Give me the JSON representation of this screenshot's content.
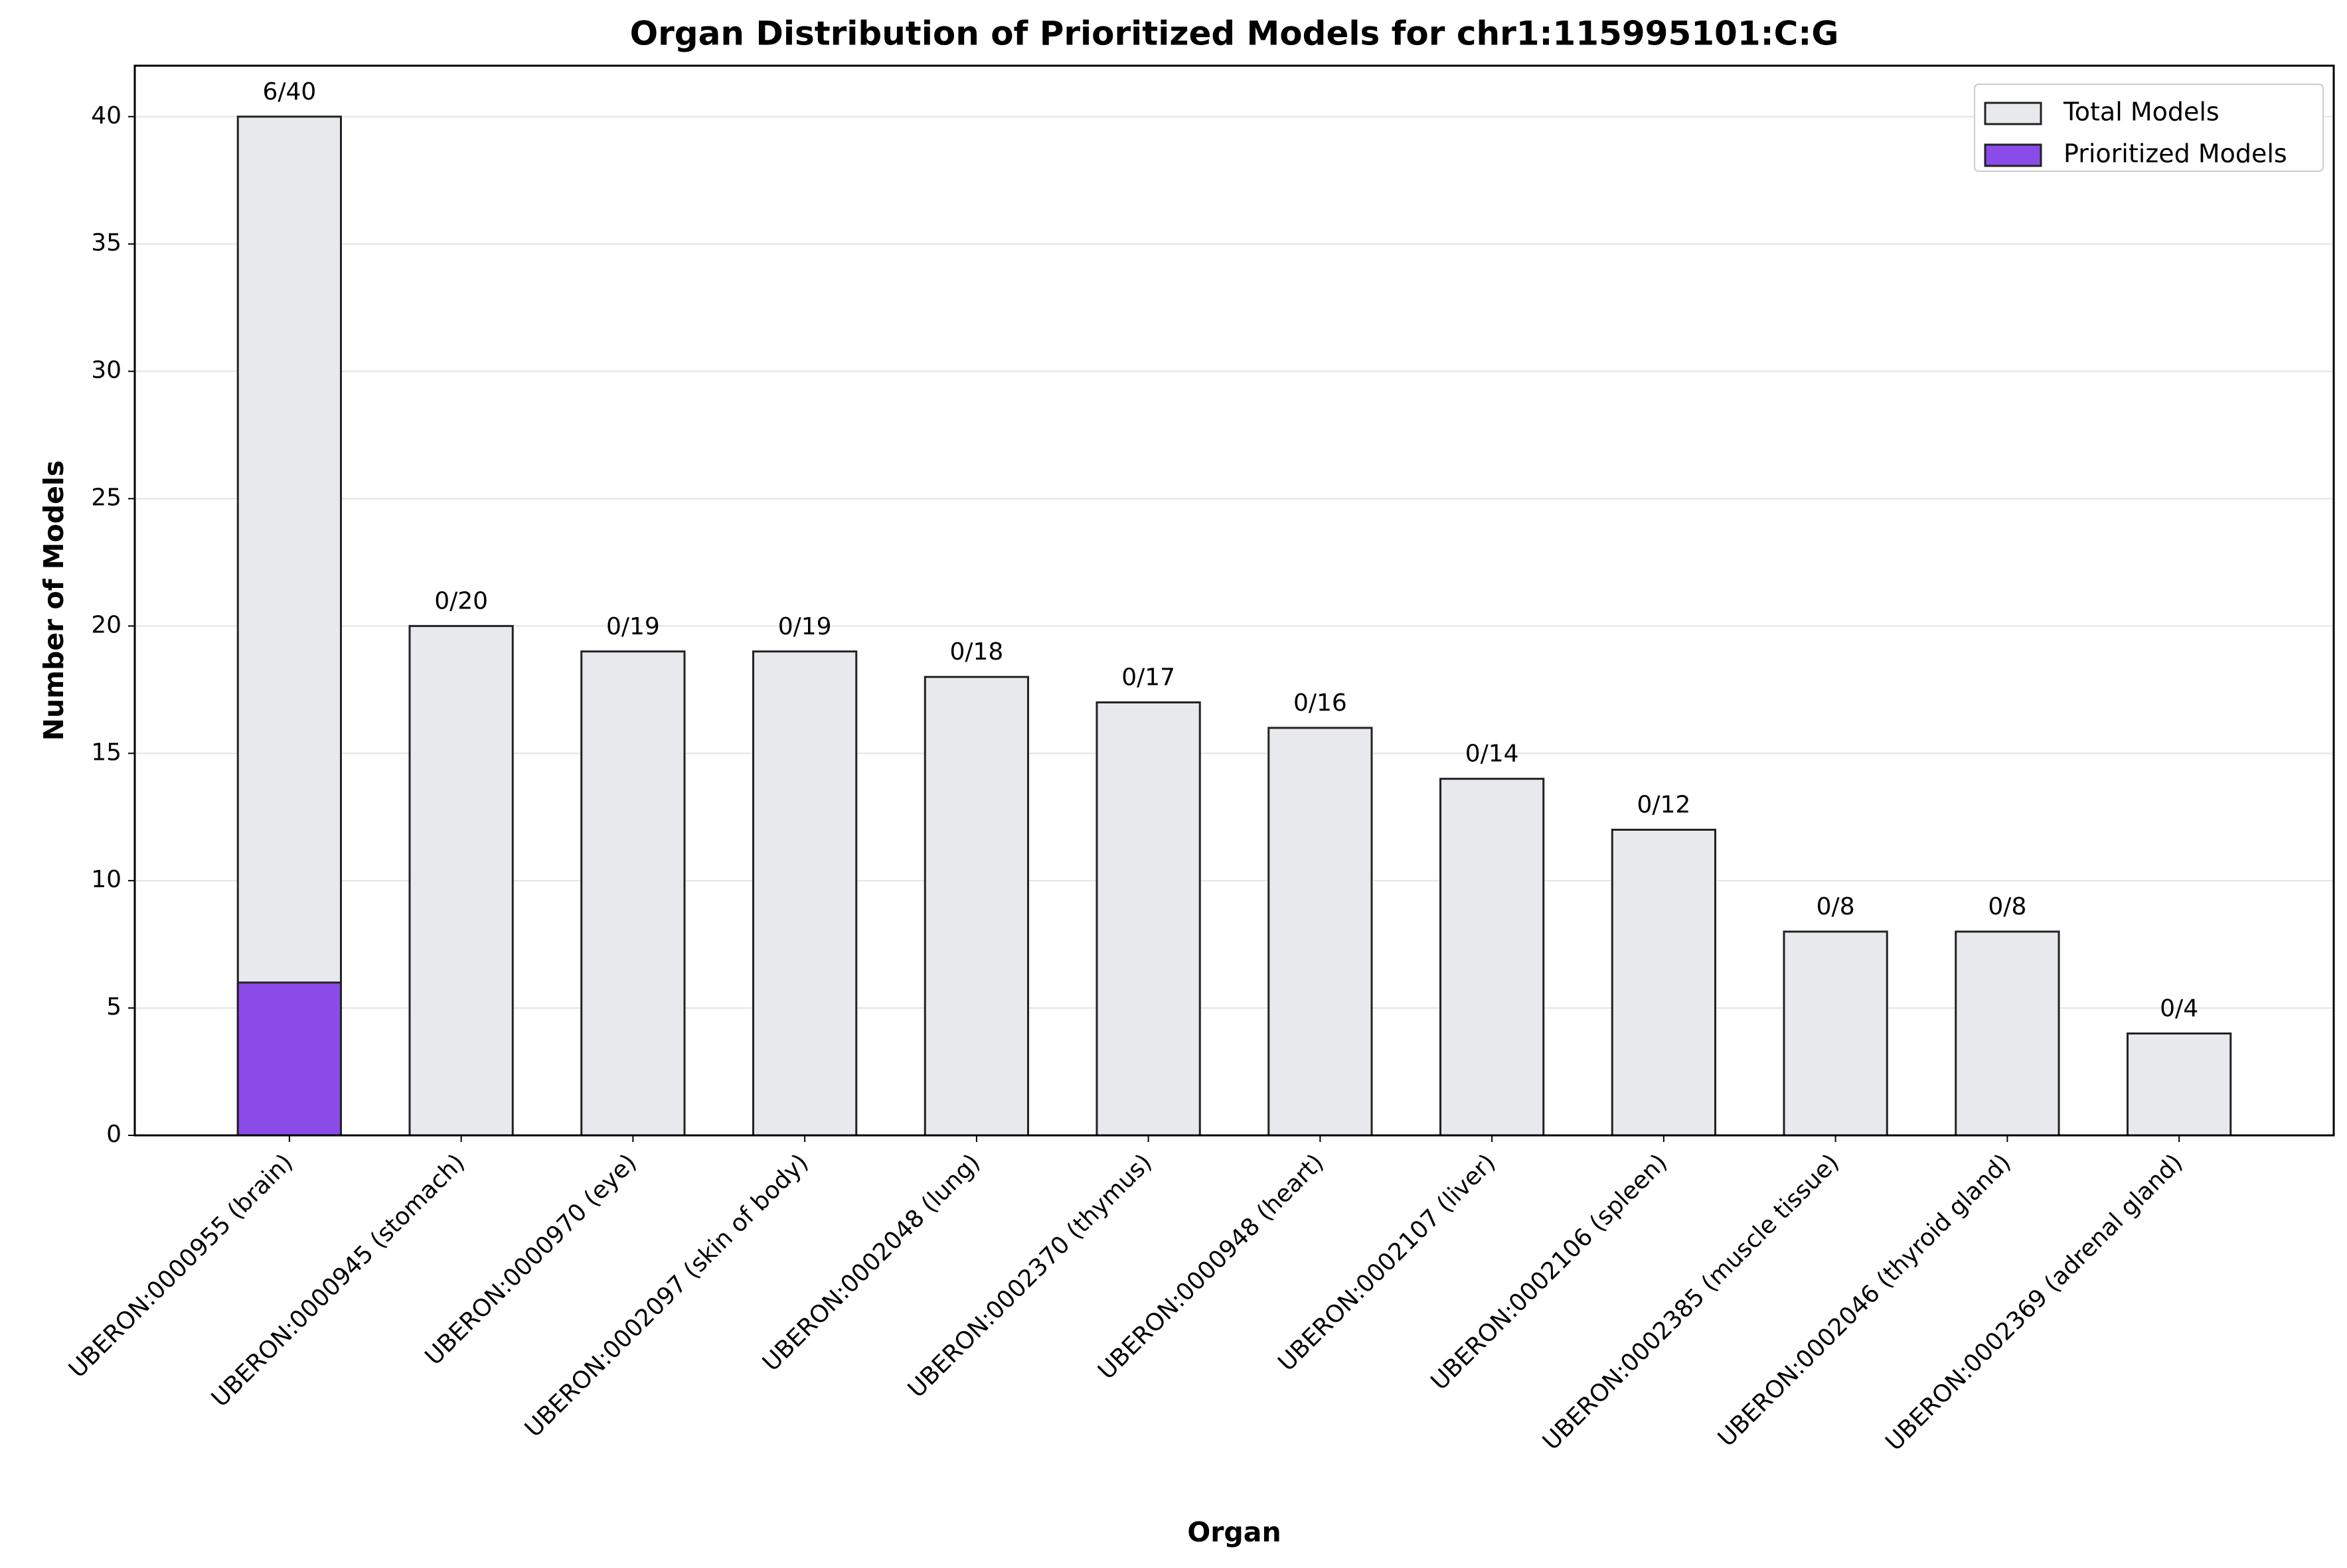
{
  "chart_data": {
    "type": "bar",
    "title": "Organ Distribution of Prioritized Models for chr1:115995101:C:G",
    "x_label": "Organ",
    "y_label": "Number of Models",
    "categories": [
      "UBERON:0000955 (brain)",
      "UBERON:0000945 (stomach)",
      "UBERON:0000970 (eye)",
      "UBERON:0002097 (skin of body)",
      "UBERON:0002048 (lung)",
      "UBERON:0002370 (thymus)",
      "UBERON:0000948 (heart)",
      "UBERON:0002107 (liver)",
      "UBERON:0002106 (spleen)",
      "UBERON:0002385 (muscle tissue)",
      "UBERON:0002046 (thyroid gland)",
      "UBERON:0002369 (adrenal gland)"
    ],
    "series": [
      {
        "name": "Total Models",
        "color": "#e8e9ec",
        "values": [
          40,
          20,
          19,
          19,
          18,
          17,
          16,
          14,
          12,
          8,
          8,
          4
        ]
      },
      {
        "name": "Prioritized Models",
        "color": "#8a4be8",
        "values": [
          6,
          0,
          0,
          0,
          0,
          0,
          0,
          0,
          0,
          0,
          0,
          0
        ]
      }
    ],
    "bar_labels": [
      "6/40",
      "0/20",
      "0/19",
      "0/19",
      "0/18",
      "0/17",
      "0/16",
      "0/14",
      "0/12",
      "0/8",
      "0/8",
      "0/4"
    ],
    "ylim": [
      0,
      42
    ],
    "yticks": [
      0,
      5,
      10,
      15,
      20,
      25,
      30,
      35,
      40
    ],
    "grid": true,
    "legend": "upper right"
  }
}
